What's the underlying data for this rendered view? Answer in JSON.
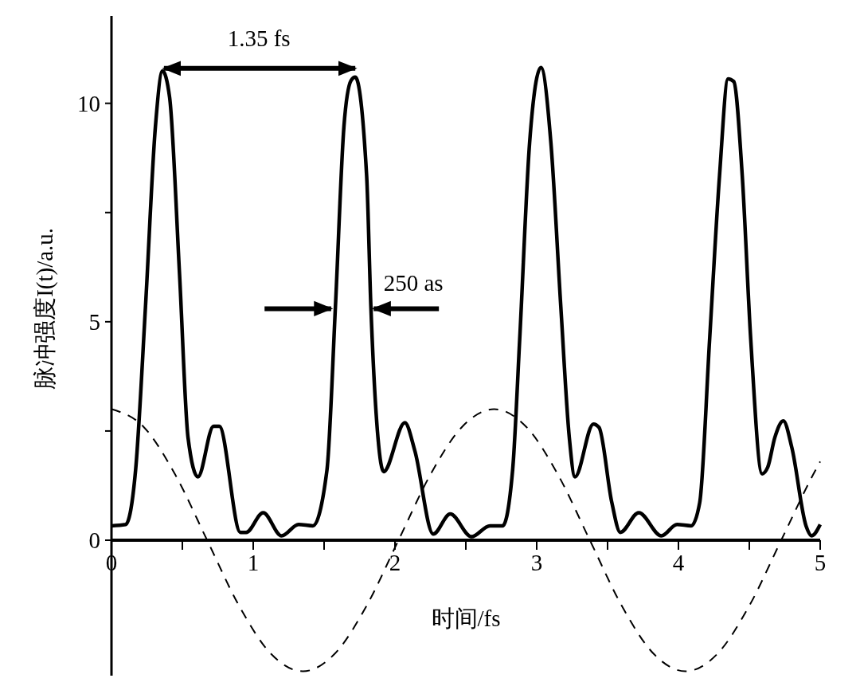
{
  "chart_data": {
    "type": "line",
    "xlabel": "时间/fs",
    "ylabel": "脉冲强度I(t)/a.u.",
    "xlim": [
      0,
      5
    ],
    "xticks": [
      0,
      {
        "value": 0.5,
        "label": null
      },
      1,
      {
        "value": 1.5,
        "label": null
      },
      2,
      {
        "value": 2.5,
        "label": null
      },
      3,
      {
        "value": 3.5,
        "label": null
      },
      4,
      {
        "value": 4.5,
        "label": null
      },
      5
    ],
    "ylim": [
      -3.1,
      12
    ],
    "yticks": [
      0,
      {
        "value": 2.5,
        "label": null
      },
      5,
      {
        "value": 7.5,
        "label": null
      },
      10
    ],
    "grid": false,
    "series": [
      {
        "color": "#000000",
        "line_style": "solid",
        "x": [
          0,
          0.1,
          0.17,
          0.24,
          0.31,
          0.36,
          0.41,
          0.48,
          0.54,
          0.61,
          0.72,
          0.76,
          0.91,
          0.95,
          1.07,
          1.2,
          1.32,
          1.42,
          1.52,
          1.58,
          1.64,
          1.69,
          1.72,
          1.8,
          1.83,
          1.88,
          1.92,
          2.07,
          2.14,
          2.27,
          2.39,
          2.54,
          2.67,
          2.76,
          2.83,
          2.88,
          2.95,
          3.03,
          3.1,
          3.17,
          3.23,
          3.27,
          3.4,
          3.44,
          3.53,
          3.59,
          3.72,
          3.88,
          3.99,
          4.09,
          4.15,
          4.22,
          4.29,
          4.35,
          4.39,
          4.45,
          4.51,
          4.59,
          4.63,
          4.68,
          4.74,
          4.8,
          4.9,
          4.94,
          5.0
        ],
        "values": [
          0.33,
          0.36,
          1.6,
          5.35,
          9.47,
          10.74,
          10.14,
          6.1,
          2.35,
          1.45,
          2.61,
          2.61,
          0.18,
          0.18,
          0.63,
          0.1,
          0.36,
          0.33,
          1.6,
          5.35,
          9.47,
          10.52,
          10.6,
          8.35,
          5.35,
          2.35,
          1.57,
          2.69,
          2.05,
          0.14,
          0.6,
          0.08,
          0.33,
          0.33,
          1.6,
          4.6,
          9.1,
          10.82,
          9.1,
          5.35,
          2.35,
          1.45,
          2.66,
          2.58,
          0.86,
          0.18,
          0.63,
          0.1,
          0.36,
          0.33,
          0.86,
          4.6,
          8.35,
          10.56,
          10.5,
          8.35,
          4.6,
          1.52,
          1.67,
          2.35,
          2.73,
          2.12,
          0.33,
          0.1,
          0.36
        ]
      },
      {
        "color": "#000000",
        "line_style": "dashed",
        "x": [
          0,
          0.225,
          0.45,
          0.675,
          0.9,
          1.125,
          1.35,
          1.575,
          1.8,
          2.025,
          2.25,
          2.475,
          2.7,
          2.925,
          3.15,
          3.375,
          3.6,
          3.825,
          4.05,
          4.275,
          4.5,
          4.725,
          4.95,
          5.0
        ],
        "values": [
          3,
          2.6,
          1.5,
          0,
          -1.5,
          -2.6,
          -3,
          -2.6,
          -1.5,
          0,
          1.5,
          2.6,
          3,
          2.6,
          1.5,
          0,
          -1.5,
          -2.6,
          -3,
          -2.6,
          -1.5,
          0,
          1.5,
          1.8
        ]
      }
    ],
    "annotations": [
      "1.35 fs",
      "250 as"
    ]
  }
}
